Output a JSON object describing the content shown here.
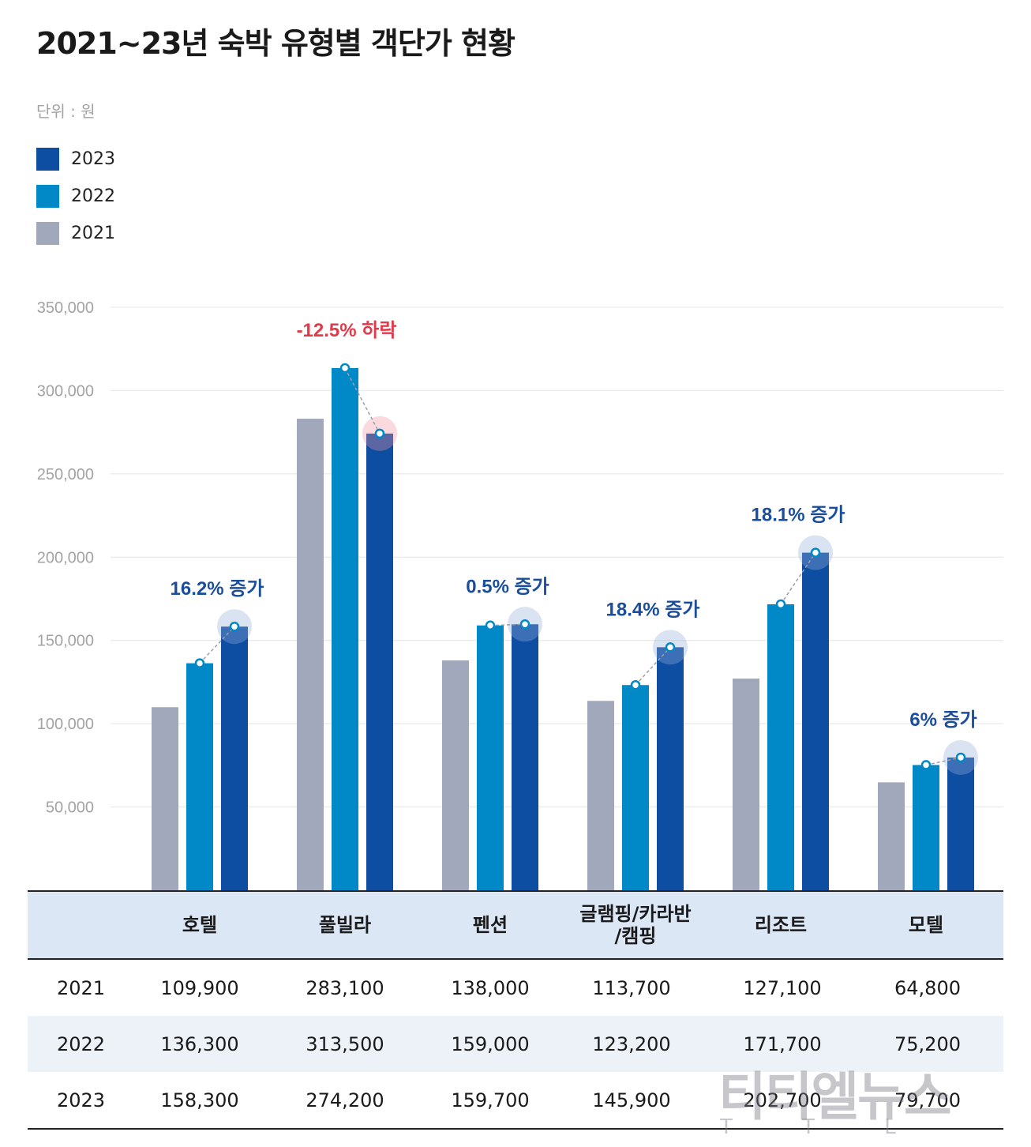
{
  "title": "2021~23년 숙박 유형별 객단가 현황",
  "unit": "단위 : 원",
  "legend": [
    {
      "label": "2023",
      "color": "#0d4ea3"
    },
    {
      "label": "2022",
      "color": "#0088c7"
    },
    {
      "label": "2021",
      "color": "#a1a8bb"
    }
  ],
  "colors": {
    "y2021": "#a1a8bb",
    "y2022": "#0088c7",
    "y2023": "#0d4ea3",
    "increase": "#1a4e9c",
    "decrease": "#e03a4b"
  },
  "chart_data": {
    "type": "bar",
    "categories": [
      "호텔",
      "풀빌라",
      "펜션",
      "글램핑/카라반/캠핑",
      "리조트",
      "모텔"
    ],
    "series": [
      {
        "name": "2021",
        "values": [
          109900,
          283100,
          138000,
          113700,
          127100,
          64800
        ]
      },
      {
        "name": "2022",
        "values": [
          136300,
          313500,
          159000,
          123200,
          171700,
          75200
        ]
      },
      {
        "name": "2023",
        "values": [
          158300,
          274200,
          159700,
          145900,
          202700,
          79700
        ]
      }
    ],
    "yticks": [
      "350,000",
      "300,000",
      "250,000",
      "200,000",
      "150,000",
      "100,000",
      "50,000"
    ],
    "ylim": [
      0,
      350000
    ],
    "annotations": [
      {
        "text": "16.2% 증가",
        "trend": "increase"
      },
      {
        "text": "-12.5% 하락",
        "trend": "decrease"
      },
      {
        "text": "0.5% 증가",
        "trend": "increase"
      },
      {
        "text": "18.4% 증가",
        "trend": "increase"
      },
      {
        "text": "18.1% 증가",
        "trend": "increase"
      },
      {
        "text": "6% 증가",
        "trend": "increase"
      }
    ]
  },
  "table": {
    "header": [
      "",
      "호텔",
      "풀빌라",
      "펜션",
      "글램핑/카라반\n/캠핑",
      "리조트",
      "모텔"
    ],
    "rows": [
      {
        "year": "2021",
        "values": [
          "109,900",
          "283,100",
          "138,000",
          "113,700",
          "127,100",
          "64,800"
        ]
      },
      {
        "year": "2022",
        "values": [
          "136,300",
          "313,500",
          "159,000",
          "123,200",
          "171,700",
          "75,200"
        ]
      },
      {
        "year": "2023",
        "values": [
          "158,300",
          "274,200",
          "159,700",
          "145,900",
          "202,700",
          "79,700"
        ]
      }
    ]
  },
  "watermark": "티티엘뉴스",
  "watermark_sub": "T T L"
}
